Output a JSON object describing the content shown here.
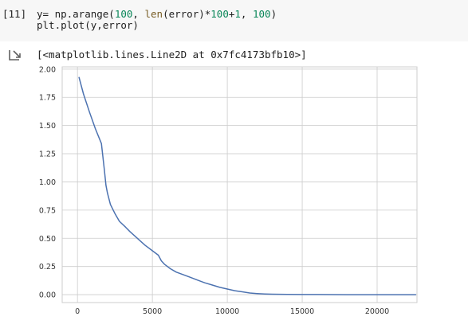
{
  "cell": {
    "prompt": "[11]",
    "code_line1_parts": [
      "y= np.arange(",
      "100",
      ", ",
      "len",
      "(error)*",
      "100",
      "+",
      "1",
      ", ",
      "100",
      ")"
    ],
    "code_line2": "plt.plot(y,error)"
  },
  "output": {
    "icon": "output-arrow-icon",
    "text": "[<matplotlib.lines.Line2D at 0x7fc4173bfb10>]"
  },
  "colors": {
    "line": "#4c72b0",
    "grid": "#cccccc",
    "number": "#098658",
    "builtin": "#795e26"
  },
  "chart_data": {
    "type": "line",
    "title": "",
    "xlabel": "",
    "ylabel": "",
    "xlim": [
      -1020,
      22660
    ],
    "ylim": [
      -0.07,
      2.02
    ],
    "xticks": [
      0,
      5000,
      10000,
      15000,
      20000
    ],
    "xtick_labels": [
      "0",
      "5000",
      "10000",
      "15000",
      "20000"
    ],
    "yticks": [
      0.0,
      0.25,
      0.5,
      0.75,
      1.0,
      1.25,
      1.5,
      1.75,
      2.0
    ],
    "ytick_labels": [
      "0.00",
      "0.25",
      "0.50",
      "0.75",
      "1.00",
      "1.25",
      "1.50",
      "1.75",
      "2.00"
    ],
    "grid": true,
    "series": [
      {
        "x": [
          100,
          400,
          800,
          1200,
          1600,
          1800,
          1900,
          2000,
          2200,
          2500,
          2800,
          3200,
          3500,
          4000,
          4500,
          5000,
          5400,
          5600,
          5800,
          6200,
          6600,
          7000,
          7500,
          8000,
          8500,
          9000,
          9500,
          10000,
          10500,
          11000,
          11500,
          12000,
          12500,
          13000,
          14000,
          15000,
          16000,
          18000,
          20000,
          22600
        ],
        "y": [
          1.93,
          1.78,
          1.62,
          1.47,
          1.34,
          1.1,
          0.97,
          0.9,
          0.8,
          0.72,
          0.65,
          0.6,
          0.56,
          0.5,
          0.44,
          0.39,
          0.35,
          0.3,
          0.27,
          0.23,
          0.2,
          0.18,
          0.155,
          0.13,
          0.105,
          0.085,
          0.065,
          0.05,
          0.035,
          0.025,
          0.015,
          0.01,
          0.006,
          0.004,
          0.002,
          0.001,
          0.001,
          0.0,
          0.0,
          0.0
        ]
      }
    ]
  }
}
